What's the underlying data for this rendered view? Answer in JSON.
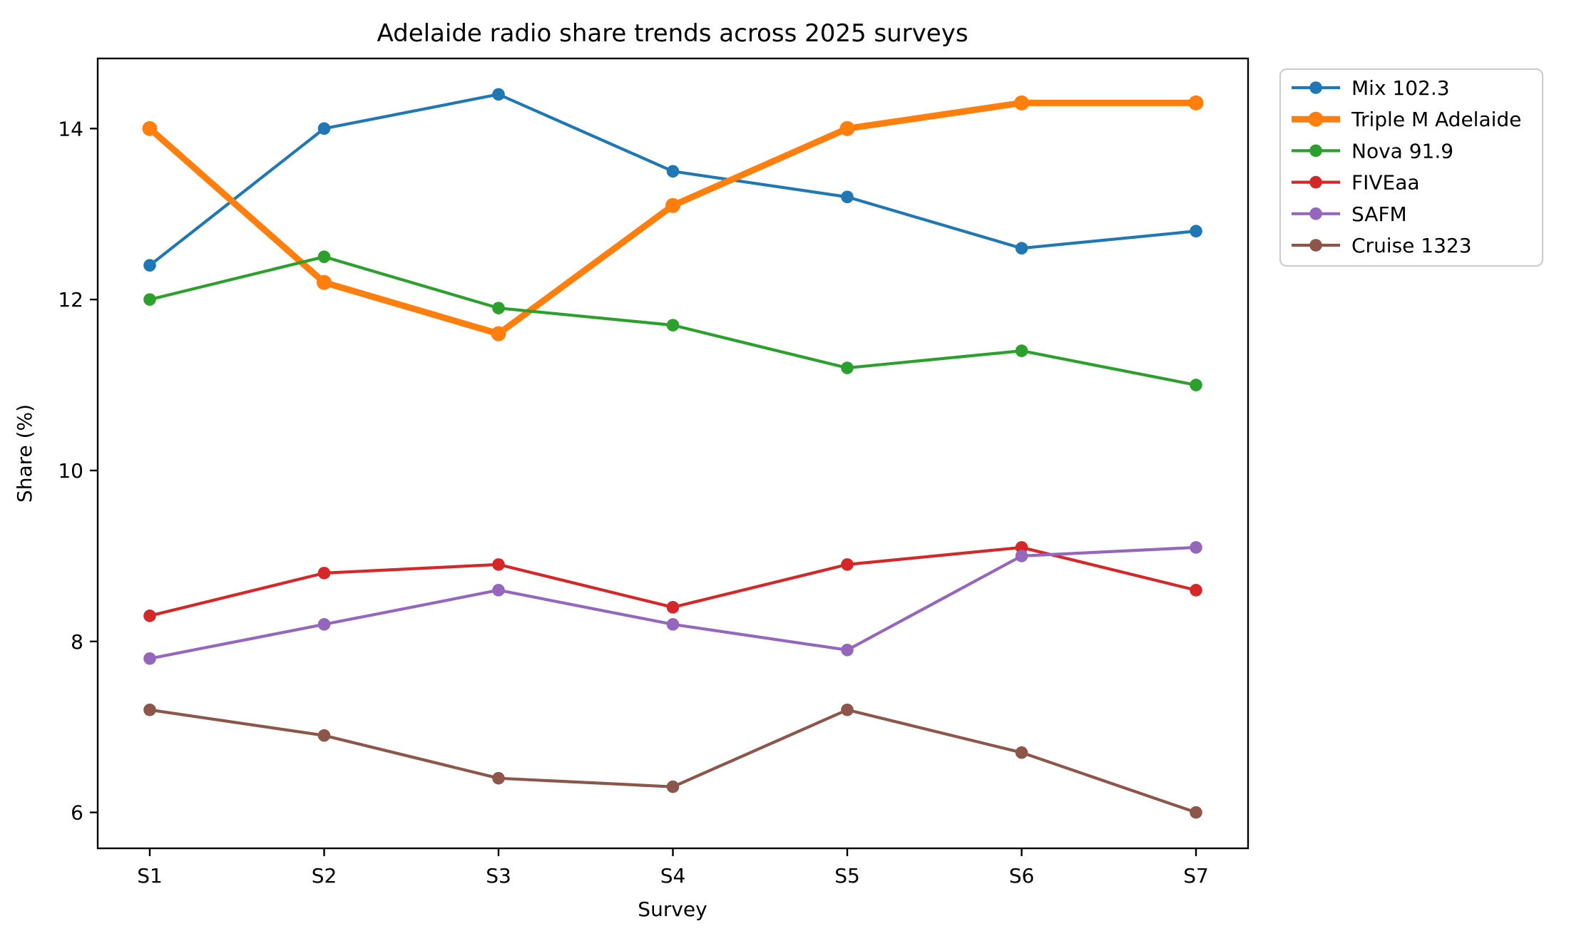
{
  "figure": {
    "background": "#ffffff",
    "axes_color": "#000000"
  },
  "chart_data": {
    "type": "line",
    "title": "Adelaide radio share trends across 2025 surveys",
    "xlabel": "Survey",
    "ylabel": "Share (%)",
    "categories": [
      "S1",
      "S2",
      "S3",
      "S4",
      "S5",
      "S6",
      "S7"
    ],
    "yticks": [
      6,
      8,
      10,
      12,
      14
    ],
    "ylim": [
      5.58,
      14.82
    ],
    "grid": false,
    "legend_position": "outside-upper-right",
    "series": [
      {
        "name": "Mix 102.3",
        "color": "#1f77b4",
        "emphasis": false,
        "values": [
          12.4,
          14.0,
          14.4,
          13.5,
          13.2,
          12.6,
          12.8
        ]
      },
      {
        "name": "Triple M Adelaide",
        "color": "#ff7f0e",
        "emphasis": true,
        "values": [
          14.0,
          12.2,
          11.6,
          13.1,
          14.0,
          14.3,
          14.3
        ]
      },
      {
        "name": "Nova 91.9",
        "color": "#2ca02c",
        "emphasis": false,
        "values": [
          12.0,
          12.5,
          11.9,
          11.7,
          11.2,
          11.4,
          11.0
        ]
      },
      {
        "name": "FIVEaa",
        "color": "#d62728",
        "emphasis": false,
        "values": [
          8.3,
          8.8,
          8.9,
          8.4,
          8.9,
          9.1,
          8.6
        ]
      },
      {
        "name": "SAFM",
        "color": "#9467bd",
        "emphasis": false,
        "values": [
          7.8,
          8.2,
          8.6,
          8.2,
          7.9,
          9.0,
          9.1
        ]
      },
      {
        "name": "Cruise 1323",
        "color": "#8c564b",
        "emphasis": false,
        "values": [
          7.2,
          6.9,
          6.4,
          6.3,
          7.2,
          6.7,
          6.0
        ]
      }
    ]
  }
}
